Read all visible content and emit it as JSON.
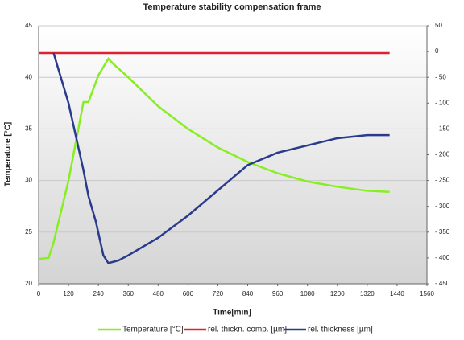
{
  "chart_data": {
    "type": "line",
    "title": "Temperature stability compensation frame",
    "x_label": "Time[min]",
    "y_label": "Temperature [°C]",
    "xlim": [
      0,
      1560
    ],
    "xticks": [
      0,
      120,
      240,
      360,
      480,
      600,
      720,
      840,
      960,
      1080,
      1200,
      1320,
      1440,
      1560
    ],
    "ylim": [
      20,
      45
    ],
    "yticks": [
      20,
      25,
      30,
      35,
      40,
      45
    ],
    "y2lim": [
      -450,
      50
    ],
    "y2ticks": [
      {
        "value": -450,
        "label": "- 450"
      },
      {
        "value": -400,
        "label": "- 400"
      },
      {
        "value": -350,
        "label": "- 350"
      },
      {
        "value": -300,
        "label": "- 300"
      },
      {
        "value": -250,
        "label": "- 250"
      },
      {
        "value": -200,
        "label": "- 200"
      },
      {
        "value": -150,
        "label": "- 150"
      },
      {
        "value": -100,
        "label": "- 100"
      },
      {
        "value": -50,
        "label": "- 50"
      },
      0,
      50
    ],
    "grid": true,
    "legend": "bottom",
    "series": [
      {
        "name": "Temperature [°C]",
        "color": "#88ee22",
        "x": [
          0,
          40,
          60,
          120,
          180,
          200,
          240,
          280,
          300,
          360,
          480,
          600,
          720,
          840,
          960,
          1080,
          1200,
          1320,
          1410
        ],
        "values": [
          22.4,
          22.5,
          24,
          30,
          37.6,
          37.6,
          40.2,
          41.8,
          41.3,
          40,
          37.2,
          35,
          33.2,
          31.8,
          30.7,
          29.9,
          29.4,
          29.0,
          28.9
        ]
      },
      {
        "name": "rel. thickn. comp. [µm]",
        "color": "#dd2233",
        "axis": "y2",
        "x": [
          0,
          1410
        ],
        "values": [
          -3,
          -3
        ]
      },
      {
        "name": "rel. thickness [µm]",
        "color": "#2a3a8c",
        "axis": "y2",
        "x": [
          60,
          120,
          180,
          200,
          230,
          260,
          280,
          320,
          360,
          480,
          600,
          720,
          840,
          960,
          1080,
          1200,
          1320,
          1410
        ],
        "values": [
          -3,
          -100,
          -230,
          -280,
          -330,
          -395,
          -410,
          -405,
          -395,
          -361,
          -318,
          -269,
          -220,
          -196,
          -182,
          -168,
          -162,
          -162
        ]
      }
    ]
  }
}
